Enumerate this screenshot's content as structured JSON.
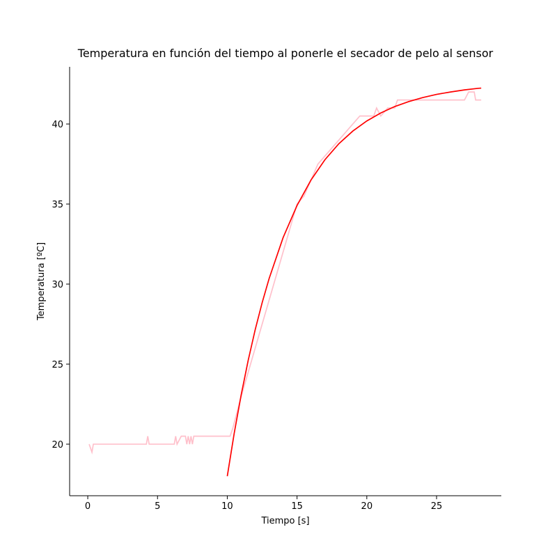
{
  "chart_data": {
    "type": "line",
    "title": "Temperatura en función del tiempo al ponerle el secador de pelo al sensor",
    "x_label": "Tiempo [s]",
    "y_label": "Temperatura [ºC]",
    "xlim": [
      -1.3,
      29.64
    ],
    "ylim": [
      16.78,
      43.57
    ],
    "xticks": [
      0,
      5,
      10,
      15,
      20,
      25
    ],
    "yticks": [
      20,
      25,
      30,
      35,
      40
    ],
    "series": [
      {
        "color": "#ffc0cb",
        "x": [
          0.1,
          0.3,
          0.4,
          4.2,
          4.3,
          4.4,
          6.2,
          6.3,
          6.4,
          6.7,
          7.0,
          7.1,
          7.2,
          7.3,
          7.4,
          7.5,
          7.6,
          10.2,
          10.4,
          10.7,
          11,
          11.5,
          12,
          12.5,
          13,
          13.5,
          14,
          14.5,
          15,
          15.5,
          16,
          16.5,
          17,
          17.5,
          18,
          18.5,
          19,
          19.5,
          20,
          20.5,
          20.7,
          21,
          21.5,
          22,
          22.2,
          23,
          27,
          27.3,
          27.7,
          27.8,
          28.2
        ],
        "values": [
          20,
          19.5,
          20,
          20,
          20.5,
          20,
          20,
          20.5,
          20,
          20.5,
          20.5,
          20,
          20.5,
          20,
          20.5,
          20,
          20.5,
          20.5,
          21,
          22,
          23,
          24.5,
          26,
          27.5,
          29,
          30.5,
          32,
          33.5,
          35,
          35.5,
          36.5,
          37.5,
          38,
          38.5,
          39,
          39.5,
          40,
          40.5,
          40.5,
          40.5,
          41,
          40.5,
          41,
          41,
          41.5,
          41.5,
          41.5,
          42,
          42,
          41.5,
          41.5
        ]
      },
      {
        "color": "#ff0000",
        "x": [
          10,
          10.5,
          11,
          11.5,
          12,
          12.5,
          13,
          14,
          15,
          16,
          17,
          18,
          19,
          20,
          21,
          22,
          23,
          24,
          25,
          26,
          27,
          28,
          28.2
        ],
        "values": [
          18.0,
          20.7,
          23.1,
          25.24,
          27.15,
          28.84,
          30.35,
          32.9,
          34.91,
          36.5,
          37.77,
          38.77,
          39.56,
          40.19,
          40.69,
          41.09,
          41.4,
          41.65,
          41.85,
          42.0,
          42.13,
          42.23,
          42.24
        ]
      }
    ]
  }
}
